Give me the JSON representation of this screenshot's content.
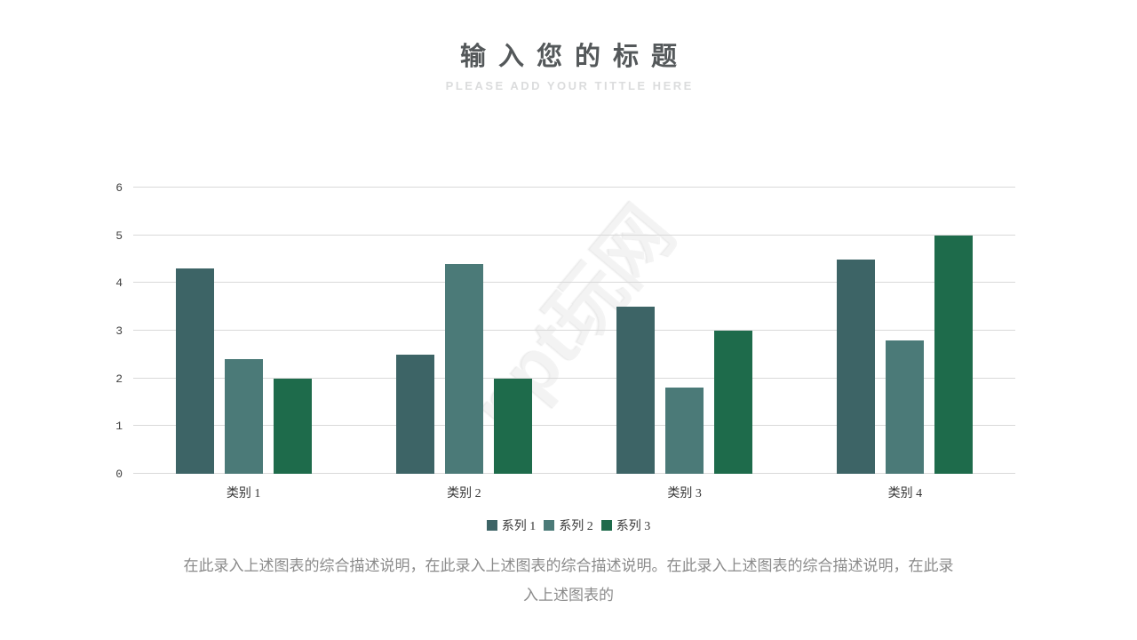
{
  "header": {
    "title": "输入您的标题",
    "subtitle": "PLEASE ADD YOUR TITTLE HERE"
  },
  "watermark": {
    "text": "ppt玩网"
  },
  "description": {
    "text": "在此录入上述图表的综合描述说明，在此录入上述图表的综合描述说明。在此录入上述图表的综合描述说明，在此录入上述图表的"
  },
  "chart_data": {
    "type": "bar",
    "categories": [
      "类别 1",
      "类别 2",
      "类别 3",
      "类别 4"
    ],
    "series": [
      {
        "name": "系列 1",
        "color": "#3d6466",
        "values": [
          4.3,
          2.5,
          3.5,
          4.5
        ]
      },
      {
        "name": "系列 2",
        "color": "#4b7a78",
        "values": [
          2.4,
          4.4,
          1.8,
          2.8
        ]
      },
      {
        "name": "系列 3",
        "color": "#1e6b4b",
        "values": [
          2.0,
          2.0,
          3.0,
          5.0
        ]
      }
    ],
    "title": "",
    "xlabel": "",
    "ylabel": "",
    "ylim": [
      0,
      6
    ],
    "yticks": [
      0,
      1,
      2,
      3,
      4,
      5,
      6
    ],
    "ytick_step": 1,
    "grid": true,
    "gridline_color": "#d9d9d9",
    "legend_position": "bottom"
  }
}
